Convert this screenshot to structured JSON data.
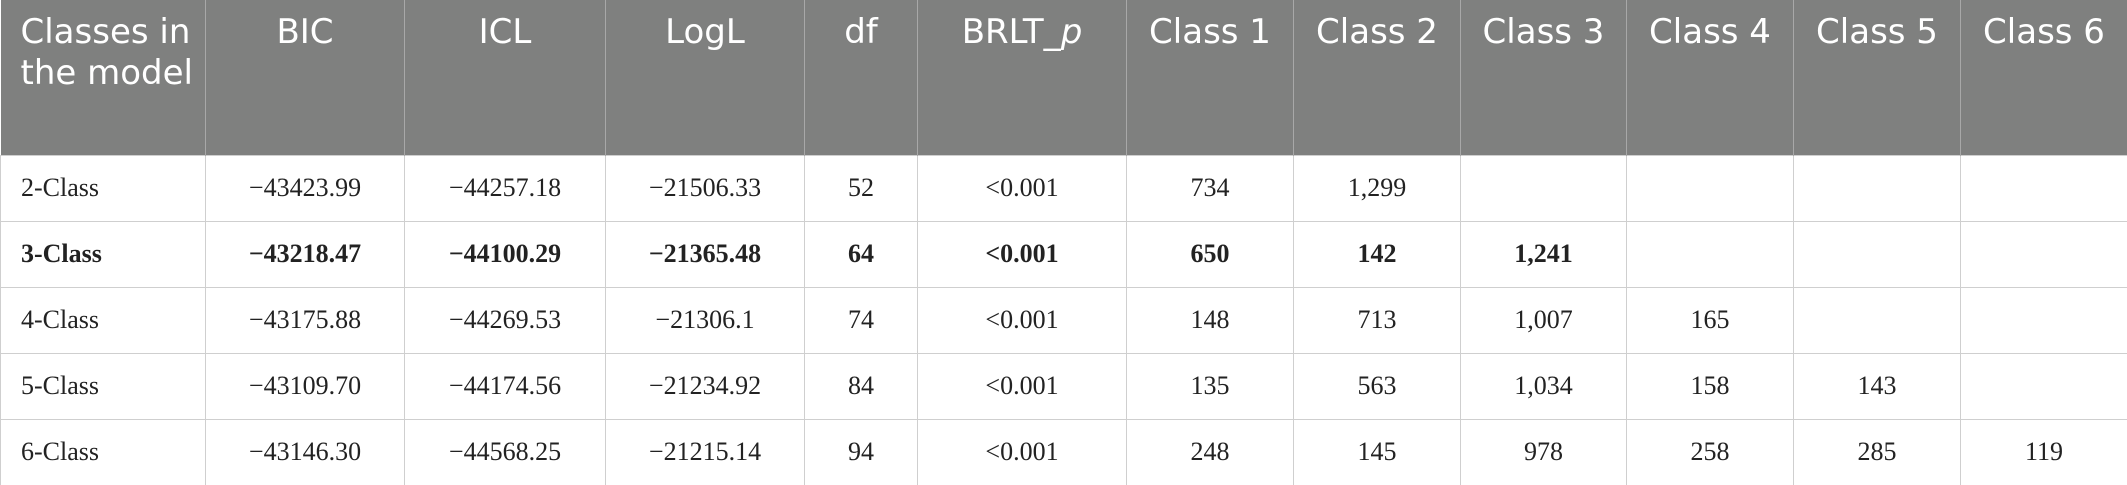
{
  "table": {
    "columns": [
      "Classes in the model",
      "BIC",
      "ICL",
      "LogL",
      "df",
      {
        "text": "BRLT_",
        "italic": "p"
      },
      "Class 1",
      "Class 2",
      "Class 3",
      "Class 4",
      "Class 5",
      "Class 6"
    ],
    "rows": [
      {
        "cells": [
          "2-Class",
          "−43423.99",
          "−44257.18",
          "−21506.33",
          "52",
          "<0.001",
          "734",
          "1,299"
        ]
      },
      {
        "cells": [
          "3-Class",
          "−43218.47",
          "−44100.29",
          "−21365.48",
          "64",
          "<0.001",
          "650",
          "142",
          "1,241"
        ],
        "bold": true
      },
      {
        "cells": [
          "4-Class",
          "−43175.88",
          "−44269.53",
          "−21306.1",
          "74",
          "<0.001",
          "148",
          "713",
          "1,007",
          "165"
        ]
      },
      {
        "cells": [
          "5-Class",
          "−43109.70",
          "−44174.56",
          "−21234.92",
          "84",
          "<0.001",
          "135",
          "563",
          "1,034",
          "158",
          "143"
        ]
      },
      {
        "cells": [
          "6-Class",
          "−43146.30",
          "−44568.25",
          "−21215.14",
          "94",
          "<0.001",
          "248",
          "145",
          "978",
          "258",
          "285",
          "119"
        ]
      }
    ]
  }
}
